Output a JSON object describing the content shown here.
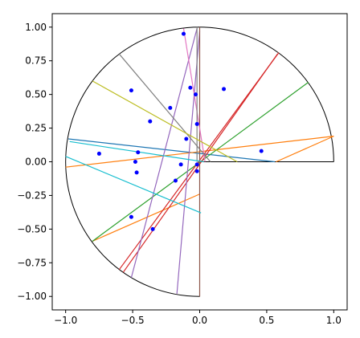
{
  "chart_data": {
    "type": "scatter",
    "title": "",
    "xlabel": "",
    "ylabel": "",
    "xlim": [
      -1.1,
      1.1
    ],
    "ylim": [
      -1.1,
      1.1
    ],
    "grid": false,
    "xticks": [
      -1.0,
      -0.5,
      0.0,
      0.5,
      1.0
    ],
    "xtick_labels": [
      "−1.0",
      "−0.5",
      "0.0",
      "0.5",
      "1.0"
    ],
    "yticks": [
      -1.0,
      -0.75,
      -0.5,
      -0.25,
      0.0,
      0.25,
      0.5,
      0.75,
      1.0
    ],
    "ytick_labels": [
      "−1.00",
      "−0.75",
      "−0.50",
      "−0.25",
      "0.00",
      "0.25",
      "0.50",
      "0.75",
      "1.00"
    ],
    "boundary": {
      "shape": "half-disk",
      "radius": 1.0,
      "center": [
        0,
        0
      ],
      "arc_from_deg": 0,
      "arc_to_deg": 270,
      "edges": [
        [
          [
            0,
            0
          ],
          [
            1,
            0
          ]
        ],
        [
          [
            0,
            0
          ],
          [
            0,
            -1
          ]
        ]
      ],
      "color": "#000000"
    },
    "points": {
      "color": "#0000ff",
      "x": [
        -0.12,
        -0.07,
        -0.22,
        -0.37,
        -0.51,
        -0.03,
        0.18,
        -0.02,
        -0.46,
        -0.75,
        -0.48,
        -0.47,
        -0.1,
        -0.02,
        -0.14,
        -0.18,
        -0.02,
        0.46,
        -0.51,
        -0.35
      ],
      "y": [
        0.95,
        0.55,
        0.4,
        0.3,
        0.53,
        0.5,
        0.54,
        0.28,
        0.07,
        0.06,
        0.0,
        -0.08,
        0.17,
        -0.02,
        -0.02,
        -0.14,
        -0.07,
        0.08,
        -0.41,
        -0.5
      ]
    },
    "segments": [
      {
        "color": "#1f77b4",
        "x": [
          -0.98,
          0.56
        ],
        "y": [
          0.17,
          0.0
        ]
      },
      {
        "color": "#ff7f0e",
        "x": [
          -1.0,
          1.0
        ],
        "y": [
          -0.04,
          0.19
        ]
      },
      {
        "color": "#ff7f0e",
        "x": [
          0.57,
          1.0
        ],
        "y": [
          0.0,
          0.19
        ]
      },
      {
        "color": "#ff7f0e",
        "x": [
          -0.8,
          0.0
        ],
        "y": [
          -0.59,
          -0.24
        ]
      },
      {
        "color": "#2ca02c",
        "x": [
          -0.8,
          0.81
        ],
        "y": [
          -0.59,
          0.59
        ]
      },
      {
        "color": "#d62728",
        "x": [
          -0.6,
          0.59
        ],
        "y": [
          -0.8,
          0.81
        ]
      },
      {
        "color": "#d62728",
        "x": [
          -0.57,
          0.58
        ],
        "y": [
          -0.82,
          0.8
        ]
      },
      {
        "color": "#9467bd",
        "x": [
          -0.51,
          -0.02
        ],
        "y": [
          -0.86,
          0.99
        ]
      },
      {
        "color": "#9467bd",
        "x": [
          -0.17,
          0.0
        ],
        "y": [
          -0.98,
          0.97
        ]
      },
      {
        "color": "#8c564b",
        "x": [
          0.0,
          0.0
        ],
        "y": [
          -1.0,
          1.0
        ]
      },
      {
        "color": "#e377c2",
        "x": [
          -0.12,
          0.04
        ],
        "y": [
          0.99,
          0.0
        ]
      },
      {
        "color": "#7f7f7f",
        "x": [
          -0.6,
          0.08
        ],
        "y": [
          0.8,
          0.0
        ]
      },
      {
        "color": "#7f7f7f",
        "x": [
          -0.02,
          -0.02
        ],
        "y": [
          1.0,
          0.0
        ]
      },
      {
        "color": "#bcbd22",
        "x": [
          -0.8,
          0.28
        ],
        "y": [
          0.6,
          0.0
        ]
      },
      {
        "color": "#17becf",
        "x": [
          -1.0,
          0.01
        ],
        "y": [
          0.04,
          -0.38
        ]
      },
      {
        "color": "#17becf",
        "x": [
          -0.97,
          0.03
        ],
        "y": [
          0.15,
          0.0
        ]
      }
    ]
  }
}
